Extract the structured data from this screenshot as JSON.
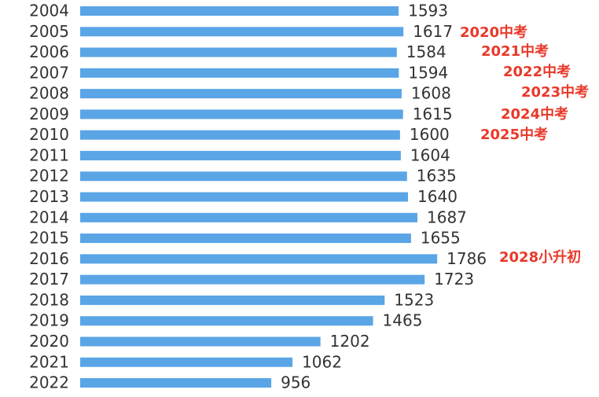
{
  "chart_data": {
    "type": "bar",
    "orientation": "horizontal",
    "categories": [
      "2004",
      "2005",
      "2006",
      "2007",
      "2008",
      "2009",
      "2010",
      "2011",
      "2012",
      "2013",
      "2014",
      "2015",
      "2016",
      "2017",
      "2018",
      "2019",
      "2020",
      "2021",
      "2022"
    ],
    "values": [
      1593,
      1617,
      1584,
      1594,
      1608,
      1615,
      1600,
      1604,
      1635,
      1640,
      1687,
      1655,
      1786,
      1723,
      1523,
      1465,
      1202,
      1062,
      956
    ],
    "color": "#5aa5e6",
    "annotations": [
      "2020中考",
      "2021中考",
      "2022中考",
      "2023中考",
      "2024中考",
      "2025中考",
      "2028小升初"
    ],
    "annotation_color": "#e8392a"
  }
}
